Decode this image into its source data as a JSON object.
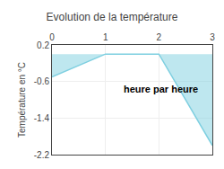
{
  "chart_data": {
    "type": "area",
    "title": "Evolution de la température",
    "ylabel": "Température en °C",
    "annotations": [
      "heure par heure"
    ],
    "x": [
      0,
      1,
      2,
      3
    ],
    "values": [
      -0.5,
      0.0,
      0.0,
      -2.0
    ],
    "color": "#7ecfe0",
    "xlim": [
      0,
      3
    ],
    "xticks": [
      0,
      1,
      2,
      3
    ],
    "ylim": [
      -2.2,
      0.2
    ],
    "yticks": [
      0.2,
      -0.6,
      -1.4,
      -2.2
    ],
    "grid": true
  }
}
